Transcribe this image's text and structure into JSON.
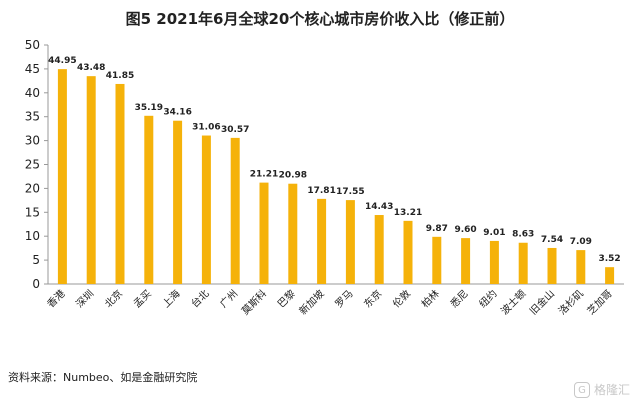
{
  "chart_data": {
    "type": "bar",
    "title": "图5  2021年6月全球20个核心城市房价收入比（修正前）",
    "categories": [
      "香港",
      "深圳",
      "北京",
      "孟买",
      "上海",
      "台北",
      "广州",
      "莫斯科",
      "巴黎",
      "新加坡",
      "罗马",
      "东京",
      "伦敦",
      "柏林",
      "悉尼",
      "纽约",
      "波士顿",
      "旧金山",
      "洛杉矶",
      "芝加哥"
    ],
    "values": [
      44.95,
      43.48,
      41.85,
      35.19,
      34.16,
      31.06,
      30.57,
      21.21,
      20.98,
      17.81,
      17.55,
      14.43,
      13.21,
      9.87,
      9.6,
      9.01,
      8.63,
      7.54,
      7.09,
      3.52
    ],
    "data_labels": [
      "44.95",
      "43.48",
      "41.85",
      "35.19",
      "34.16",
      "31.06",
      "30.57",
      "21.21",
      "20.98",
      "17.81",
      "17.55",
      "14.43",
      "13.21",
      "9.87",
      "9.60",
      "9.01",
      "8.63",
      "7.54",
      "7.09",
      "3.52"
    ],
    "ylim": [
      0,
      50
    ],
    "yticks": [
      "0",
      "5",
      "10",
      "15",
      "20",
      "25",
      "30",
      "35",
      "40",
      "45",
      "50"
    ],
    "xlabel": "",
    "ylabel": "",
    "grid": false,
    "legend": "none",
    "bar_color": "#F5B20A"
  },
  "source_note": "资料来源：Numbeo、如是金融研究院",
  "watermark": {
    "logo_glyph": "G",
    "text": "格隆汇"
  }
}
